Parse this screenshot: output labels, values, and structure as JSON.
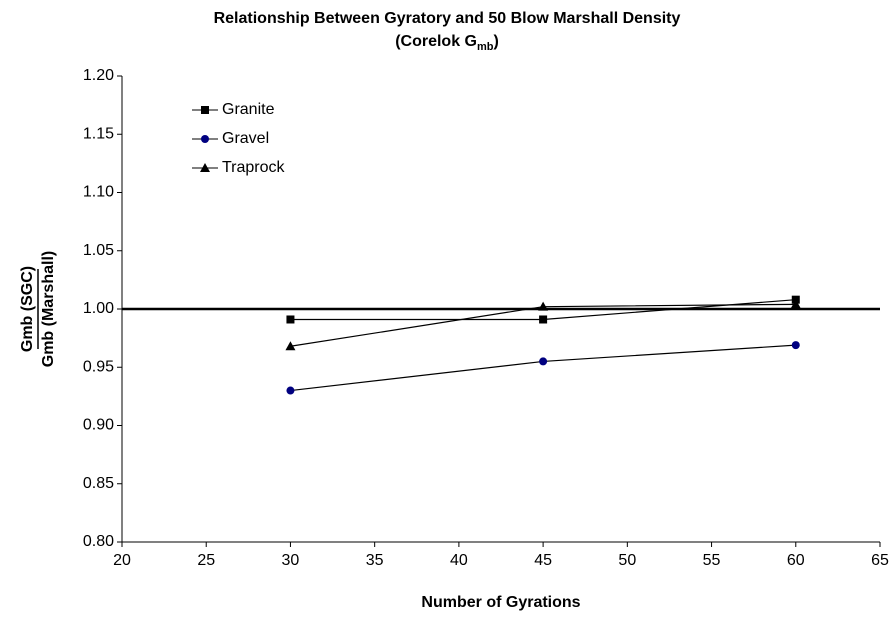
{
  "chart_data": {
    "type": "line",
    "title": "Relationship Between Gyratory and 50 Blow Marshall Density",
    "subtitle": {
      "text": "(Corelok G",
      "subscript": "mb",
      "suffix": ")"
    },
    "x_label": "Number of Gyrations",
    "y_label": {
      "numerator": "Gmb (SGC)",
      "denominator": "Gmb (Marshall)"
    },
    "x": [
      30,
      45,
      60
    ],
    "series": [
      {
        "name": "Granite",
        "color": "#000000",
        "line_color": "#000000",
        "marker": "square",
        "values": [
          0.991,
          0.991,
          1.008
        ]
      },
      {
        "name": "Gravel",
        "color": "#000080",
        "line_color": "#000000",
        "marker": "circle",
        "values": [
          0.93,
          0.955,
          0.969
        ]
      },
      {
        "name": "Traprock",
        "color": "#000000",
        "line_color": "#000000",
        "marker": "triangle",
        "values": [
          0.968,
          1.002,
          1.004
        ]
      }
    ],
    "xlim": [
      20,
      65
    ],
    "xticks": [
      20,
      25,
      30,
      35,
      40,
      45,
      50,
      55,
      60,
      65
    ],
    "ylim": [
      0.8,
      1.2
    ],
    "yticks": [
      {
        "value": 0.8,
        "label": "0.80"
      },
      0.85,
      {
        "value": 0.9,
        "label": "0.90"
      },
      0.95,
      {
        "value": 1.0,
        "label": "1.00"
      },
      1.05,
      {
        "value": 1.1,
        "label": "1.10"
      },
      1.15,
      {
        "value": 1.2,
        "label": "1.20"
      }
    ],
    "reference_line": 1.0,
    "legend": "top-left",
    "grid": false
  }
}
